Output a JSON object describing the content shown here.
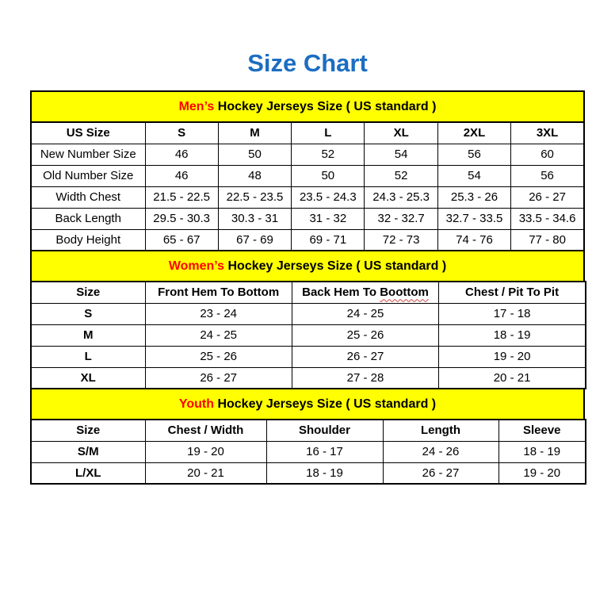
{
  "page": {
    "title": "Size Chart",
    "title_color": "#1b6ec2",
    "banner_bg": "#ffff00",
    "banner_highlight_color": "#ff0000",
    "border_color": "#000000"
  },
  "sections": {
    "mens": {
      "banner": {
        "highlight": "Men’s",
        "rest": " Hockey Jerseys Size ( US standard )"
      },
      "header": [
        "US Size",
        "S",
        "M",
        "L",
        "XL",
        "2XL",
        "3XL"
      ],
      "rows": [
        {
          "label": "New Number Size",
          "values": [
            "46",
            "50",
            "52",
            "54",
            "56",
            "60"
          ]
        },
        {
          "label": "Old Number Size",
          "values": [
            "46",
            "48",
            "50",
            "52",
            "54",
            "56"
          ]
        },
        {
          "label": "Width Chest",
          "values": [
            "21.5 - 22.5",
            "22.5 - 23.5",
            "23.5 - 24.3",
            "24.3 - 25.3",
            "25.3 - 26",
            "26 - 27"
          ]
        },
        {
          "label": "Back Length",
          "values": [
            "29.5 - 30.3",
            "30.3 - 31",
            "31 - 32",
            "32 - 32.7",
            "32.7 - 33.5",
            "33.5 - 34.6"
          ]
        },
        {
          "label": "Body Height",
          "values": [
            "65 - 67",
            "67 - 69",
            "69 - 71",
            "72 - 73",
            "74 - 76",
            "77 - 80"
          ]
        }
      ]
    },
    "womens": {
      "banner": {
        "highlight": "Women’s",
        "rest": " Hockey Jerseys Size ( US standard )"
      },
      "header": [
        "Size",
        "Front Hem To Bottom",
        "Chest / Pit To Pit"
      ],
      "back_hem_prefix": "Back Hem To ",
      "back_hem_word": "Boottom",
      "rows": [
        {
          "label": "S",
          "values": [
            "23 - 24",
            "24 - 25",
            "17 - 18"
          ]
        },
        {
          "label": "M",
          "values": [
            "24 - 25",
            "25 - 26",
            "18 - 19"
          ]
        },
        {
          "label": "L",
          "values": [
            "25 - 26",
            "26 - 27",
            "19 - 20"
          ]
        },
        {
          "label": "XL",
          "values": [
            "26 - 27",
            "27 - 28",
            "20 - 21"
          ]
        }
      ]
    },
    "youth": {
      "banner": {
        "highlight": "Youth",
        "rest": " Hockey Jerseys Size ( US standard )"
      },
      "header": [
        "Size",
        "Chest / Width",
        "Shoulder",
        "Length",
        "Sleeve"
      ],
      "rows": [
        {
          "label": "S/M",
          "values": [
            "19 - 20",
            "16 - 17",
            "24 - 26",
            "18 - 19"
          ]
        },
        {
          "label": "L/XL",
          "values": [
            "20 - 21",
            "18 - 19",
            "26 - 27",
            "19 - 20"
          ]
        }
      ]
    }
  },
  "chart_data": [
    {
      "type": "table",
      "title": "Men’s Hockey Jerseys Size ( US standard )",
      "columns": [
        "US Size",
        "S",
        "M",
        "L",
        "XL",
        "2XL",
        "3XL"
      ],
      "rows": [
        [
          "New Number Size",
          "46",
          "50",
          "52",
          "54",
          "56",
          "60"
        ],
        [
          "Old Number Size",
          "46",
          "48",
          "50",
          "52",
          "54",
          "56"
        ],
        [
          "Width Chest",
          "21.5 - 22.5",
          "22.5 - 23.5",
          "23.5 - 24.3",
          "24.3 - 25.3",
          "25.3 - 26",
          "26 - 27"
        ],
        [
          "Back Length",
          "29.5 - 30.3",
          "30.3 - 31",
          "31 - 32",
          "32 - 32.7",
          "32.7 - 33.5",
          "33.5 - 34.6"
        ],
        [
          "Body Height",
          "65 - 67",
          "67 - 69",
          "69 - 71",
          "72 - 73",
          "74 - 76",
          "77 - 80"
        ]
      ]
    },
    {
      "type": "table",
      "title": "Women’s Hockey Jerseys Size ( US standard )",
      "columns": [
        "Size",
        "Front Hem To Bottom",
        "Back Hem To Boottom",
        "Chest / Pit To Pit"
      ],
      "rows": [
        [
          "S",
          "23 - 24",
          "24 - 25",
          "17 - 18"
        ],
        [
          "M",
          "24 - 25",
          "25 - 26",
          "18 - 19"
        ],
        [
          "L",
          "25 - 26",
          "26 - 27",
          "19 - 20"
        ],
        [
          "XL",
          "26 - 27",
          "27 - 28",
          "20 - 21"
        ]
      ]
    },
    {
      "type": "table",
      "title": "Youth Hockey Jerseys Size ( US standard )",
      "columns": [
        "Size",
        "Chest / Width",
        "Shoulder",
        "Length",
        "Sleeve"
      ],
      "rows": [
        [
          "S/M",
          "19 - 20",
          "16 - 17",
          "24 - 26",
          "18 - 19"
        ],
        [
          "L/XL",
          "20 - 21",
          "18 - 19",
          "26 - 27",
          "19 - 20"
        ]
      ]
    }
  ]
}
